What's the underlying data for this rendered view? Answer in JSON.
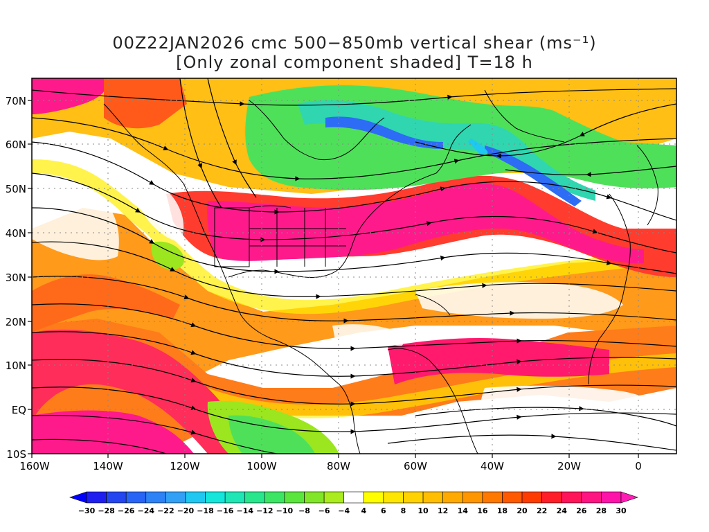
{
  "title_line1": "00Z22JAN2026 cmc 500−850mb vertical shear (ms⁻¹)",
  "title_line2": "[Only zonal component shaded] T=18 h",
  "lat_labels": [
    "70N",
    "60N",
    "50N",
    "40N",
    "30N",
    "20N",
    "10N",
    "EQ",
    "10S"
  ],
  "lon_labels": [
    "160W",
    "140W",
    "120W",
    "100W",
    "80W",
    "60W",
    "40W",
    "20W",
    "0"
  ],
  "colorbar": {
    "labels": [
      "−30",
      "−28",
      "−26",
      "−24",
      "−22",
      "−20",
      "−18",
      "−16",
      "−14",
      "−12",
      "−10",
      "−8",
      "−6",
      "−4",
      "4",
      "6",
      "8",
      "10",
      "12",
      "14",
      "16",
      "18",
      "20",
      "22",
      "24",
      "26",
      "28",
      "30"
    ],
    "colors": [
      "#1e1ef0",
      "#2346f0",
      "#2864f5",
      "#2d82f5",
      "#32a0f5",
      "#1ec8f0",
      "#14e6dc",
      "#1ee6b4",
      "#28e68c",
      "#3ce664",
      "#5ae63c",
      "#82e628",
      "#aaec1e",
      "#ffffff",
      "#ffff00",
      "#ffe600",
      "#ffd200",
      "#ffbe00",
      "#ffaa00",
      "#ff9600",
      "#ff7800",
      "#ff5a00",
      "#ff3c00",
      "#ff1e28",
      "#ff145a",
      "#ff1482",
      "#ff14aa"
    ],
    "arrow_left": "#0000ff",
    "arrow_right": "#ff1eb4"
  },
  "map_colors": {
    "magenta": "#ff1a8c",
    "red": "#ff2d2d",
    "orange_red": "#ff6a1a",
    "orange": "#ff9a1a",
    "amber": "#ffbf14",
    "yellow": "#ffee00",
    "lime": "#9be61e",
    "green": "#4fe05a",
    "teal": "#2fd6b0",
    "cyan": "#1ec8f0",
    "blue": "#2d6cf5"
  }
}
